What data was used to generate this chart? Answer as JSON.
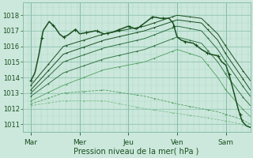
{
  "bg_color": "#cce8dc",
  "grid_color_minor": "#aad4c4",
  "grid_color_major": "#88bfaa",
  "line_dark": "#1a5020",
  "line_med": "#2d7040",
  "line_light": "#50a060",
  "line_vlight": "#80c090",
  "xlim": [
    0,
    112
  ],
  "ylim": [
    1010.5,
    1018.8
  ],
  "yticks": [
    1011,
    1012,
    1013,
    1014,
    1015,
    1016,
    1017,
    1018
  ],
  "xtick_positions": [
    4,
    28,
    52,
    76,
    100
  ],
  "xtick_labels": [
    "Mar",
    "Mer",
    "Jeu",
    "Ven",
    "Sam"
  ],
  "xlabel": "Pression niveau de la mer( hPa )"
}
